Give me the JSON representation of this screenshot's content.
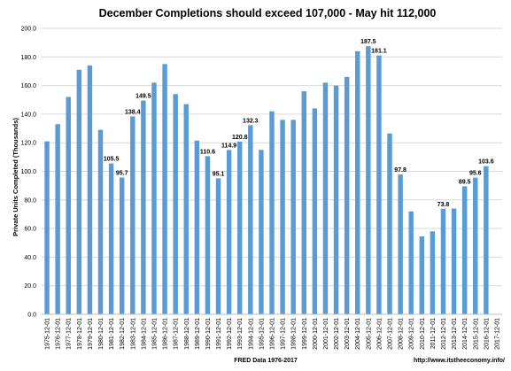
{
  "chart_data": {
    "type": "bar",
    "title": "December Completions  should exceed 107,000 - May hit 112,000",
    "ylabel": "Private Units Completed (Thousands)",
    "xlabel": "FRED Data 1976-2017",
    "source": "http://www.itstheeconomy.info/",
    "ylim": [
      0,
      200
    ],
    "yticks": [
      "0.0",
      "20.0",
      "40.0",
      "60.0",
      "80.0",
      "100.0",
      "120.0",
      "140.0",
      "160.0",
      "180.0",
      "200.0"
    ],
    "grid": true,
    "bar_color": "#5b9bd5",
    "grid_color": "#d9d9d9",
    "categories": [
      "1975-12-01",
      "1976-12-01",
      "1977-12-01",
      "1978-12-01",
      "1979-12-01",
      "1980-12-01",
      "1981-12-01",
      "1982-12-01",
      "1983-12-01",
      "1984-12-01",
      "1985-12-01",
      "1986-12-01",
      "1987-12-01",
      "1988-12-01",
      "1989-12-01",
      "1990-12-01",
      "1991-12-01",
      "1992-12-01",
      "1993-12-01",
      "1994-12-01",
      "1995-12-01",
      "1996-12-01",
      "1997-12-01",
      "1998-12-01",
      "1999-12-01",
      "2000-12-01",
      "2001-12-01",
      "2002-12-01",
      "2003-12-01",
      "2004-12-01",
      "2005-12-01",
      "2006-12-01",
      "2007-12-01",
      "2008-12-01",
      "2009-12-01",
      "2010-12-01",
      "2011-12-01",
      "2012-12-01",
      "2013-12-01",
      "2014-12-01",
      "2015-12-01",
      "2016-12-01",
      "2017-12-01"
    ],
    "values": [
      121,
      133,
      152,
      171,
      174,
      129,
      105.5,
      95.7,
      138.4,
      149.5,
      162,
      175,
      154,
      147,
      121.5,
      110.6,
      95.1,
      114.9,
      120.8,
      132.3,
      115,
      142,
      136,
      136,
      156,
      144,
      162,
      160,
      166,
      184,
      187.5,
      181.1,
      126.5,
      97.8,
      72,
      54.5,
      58,
      73.8,
      74,
      89.5,
      95.6,
      103.6,
      null
    ],
    "data_labels": [
      null,
      null,
      null,
      null,
      null,
      null,
      "105.5",
      "95.7",
      "138.4",
      "149.5",
      null,
      null,
      null,
      null,
      null,
      "110.6",
      "95.1",
      "114.9",
      "120.8",
      "132.3",
      null,
      null,
      null,
      null,
      null,
      null,
      null,
      null,
      null,
      null,
      "187.5",
      "181.1",
      null,
      "97.8",
      null,
      null,
      null,
      "73.8",
      null,
      "89.5",
      "95.6",
      "103.6",
      null
    ]
  }
}
